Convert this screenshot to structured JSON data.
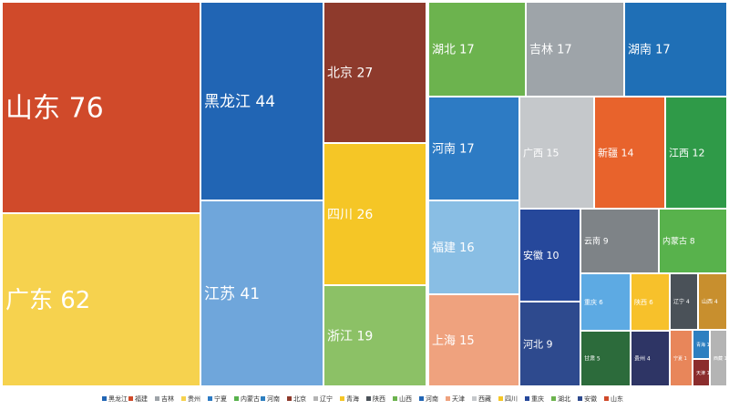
{
  "chart_data": {
    "type": "treemap",
    "title": "",
    "items": [
      {
        "name": "山东",
        "value": 76,
        "color": "#D04A2A"
      },
      {
        "name": "广东",
        "value": 62,
        "color": "#F6D24E"
      },
      {
        "name": "黑龙江",
        "value": 44,
        "color": "#2165B4"
      },
      {
        "name": "江苏",
        "value": 41,
        "color": "#6FA6DB"
      },
      {
        "name": "北京",
        "value": 27,
        "color": "#8E3A2C"
      },
      {
        "name": "四川",
        "value": 26,
        "color": "#F5C626"
      },
      {
        "name": "浙江",
        "value": 19,
        "color": "#8CC166"
      },
      {
        "name": "湖北",
        "value": 17,
        "color": "#6CB34E"
      },
      {
        "name": "吉林",
        "value": 17,
        "color": "#9EA4A9"
      },
      {
        "name": "湖南",
        "value": 17,
        "color": "#1F6FB6"
      },
      {
        "name": "河南",
        "value": 17,
        "color": "#2D7BC4"
      },
      {
        "name": "福建",
        "value": 16,
        "color": "#89BEE4"
      },
      {
        "name": "上海",
        "value": 15,
        "color": "#EFA27E"
      },
      {
        "name": "广西",
        "value": 15,
        "color": "#C5C8CB"
      },
      {
        "name": "新疆",
        "value": 14,
        "color": "#E8632C"
      },
      {
        "name": "江西",
        "value": 12,
        "color": "#2F9A48"
      },
      {
        "name": "安徽",
        "value": 10,
        "color": "#26489B"
      },
      {
        "name": "河北",
        "value": 9,
        "color": "#2E4A8E"
      },
      {
        "name": "云南",
        "value": 9,
        "color": "#7E8387"
      },
      {
        "name": "内蒙古",
        "value": 8,
        "color": "#58B24C"
      },
      {
        "name": "重庆",
        "value": 6,
        "color": "#5DAAE3"
      },
      {
        "name": "陕西",
        "value": 6,
        "color": "#F7C12B"
      },
      {
        "name": "辽宁",
        "value": 4,
        "color": "#4A5158"
      },
      {
        "name": "山西",
        "value": 4,
        "color": "#C88F2E"
      },
      {
        "name": "甘肃",
        "value": 5,
        "color": "#2C6B3B"
      },
      {
        "name": "贵州",
        "value": 4,
        "color": "#2E3565"
      },
      {
        "name": "宁夏",
        "value": 1,
        "color": "#E8865A"
      },
      {
        "name": "青海",
        "value": 1,
        "color": "#2D7FC0"
      },
      {
        "name": "天津",
        "value": 1,
        "color": "#8B2D2D"
      },
      {
        "name": "西藏",
        "value": 1,
        "color": "#B4B4B4"
      }
    ],
    "legend": {
      "position": "bottom",
      "entries": [
        {
          "name": "黑龙江",
          "color": "#2165B4"
        },
        {
          "name": "福建",
          "color": "#D04A2A"
        },
        {
          "name": "吉林",
          "color": "#9EA4A9"
        },
        {
          "name": "贵州",
          "color": "#F6D24E"
        },
        {
          "name": "宁夏",
          "color": "#2D7BC4"
        },
        {
          "name": "内蒙古",
          "color": "#58B24C"
        },
        {
          "name": "河南",
          "color": "#2D7FC0"
        },
        {
          "name": "北京",
          "color": "#8E3A2C"
        },
        {
          "name": "辽宁",
          "color": "#B4B4B4"
        },
        {
          "name": "青海",
          "color": "#F5C626"
        },
        {
          "name": "陕西",
          "color": "#4A5158"
        },
        {
          "name": "山西",
          "color": "#6CB34E"
        },
        {
          "name": "河南",
          "color": "#2165B4"
        },
        {
          "name": "天津",
          "color": "#EFA27E"
        },
        {
          "name": "西藏",
          "color": "#C5C8CB"
        },
        {
          "name": "四川",
          "color": "#F5C626"
        },
        {
          "name": "重庆",
          "color": "#26489B"
        },
        {
          "name": "湖北",
          "color": "#6CB34E"
        },
        {
          "name": "安徽",
          "color": "#2E4A8E"
        },
        {
          "name": "山东",
          "color": "#D04A2A"
        }
      ]
    }
  }
}
